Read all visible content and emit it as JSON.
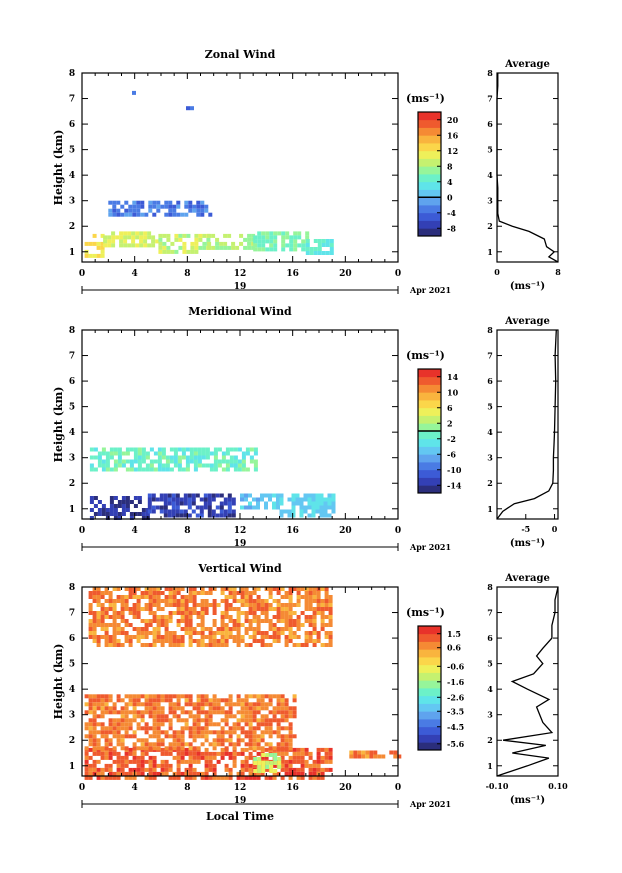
{
  "page": {
    "x_axis_label": "Local Time",
    "date_label": "Apr 2021",
    "day_label": "19"
  },
  "chart_data": [
    {
      "id": "zonal",
      "type": "heatmap",
      "title": "Zonal Wind",
      "ylabel": "Height (km)",
      "xlabel": "",
      "x_ticks": [
        "0",
        "4",
        "8",
        "12",
        "16",
        "20",
        "0"
      ],
      "y_ticks": [
        "1",
        "2",
        "3",
        "4",
        "5",
        "6",
        "7",
        "8"
      ],
      "xlim": [
        0,
        24
      ],
      "ylim": [
        0.6,
        8
      ],
      "colorbar": {
        "unit": "(ms⁻¹)",
        "ticks": [
          "-8",
          "-4",
          "0",
          "4",
          "8",
          "12",
          "16",
          "20"
        ],
        "range": [
          -10,
          22
        ],
        "marker": 0
      },
      "regions": [
        {
          "x": [
            0.2,
            1.6
          ],
          "y": [
            0.8,
            1.7
          ],
          "value": 12
        },
        {
          "x": [
            1.6,
            5.8
          ],
          "y": [
            1.3,
            1.8
          ],
          "value": 10
        },
        {
          "x": [
            5.8,
            9.5
          ],
          "y": [
            1.0,
            1.7
          ],
          "value": 9
        },
        {
          "x": [
            9.5,
            13.0
          ],
          "y": [
            1.2,
            1.7
          ],
          "value": 8
        },
        {
          "x": [
            13.0,
            17.0
          ],
          "y": [
            1.1,
            1.8
          ],
          "value": 6
        },
        {
          "x": [
            17.0,
            19.0
          ],
          "y": [
            0.9,
            1.5
          ],
          "value": 4
        },
        {
          "x": [
            2.0,
            9.8
          ],
          "y": [
            2.4,
            3.0
          ],
          "value": -3
        },
        {
          "x": [
            3.8,
            4.3
          ],
          "y": [
            7.2,
            7.3
          ],
          "value": -4
        },
        {
          "x": [
            7.9,
            8.3
          ],
          "y": [
            6.6,
            6.7
          ],
          "value": -4
        }
      ],
      "average": {
        "title": "Average",
        "x_ticks": [
          "0",
          "8"
        ],
        "xlim": [
          0,
          8
        ],
        "xlabel": "(ms⁻¹)",
        "profile": [
          [
            0.6,
            8.0
          ],
          [
            0.8,
            6.8
          ],
          [
            1.0,
            7.5
          ],
          [
            1.2,
            6.5
          ],
          [
            1.5,
            6.2
          ],
          [
            1.8,
            4.2
          ],
          [
            2.0,
            2.0
          ],
          [
            2.2,
            0.3
          ],
          [
            2.5,
            0.1
          ],
          [
            3.0,
            0.1
          ],
          [
            3.5,
            0.1
          ],
          [
            4.0,
            0.0
          ],
          [
            5.0,
            0.0
          ],
          [
            6.0,
            0.0
          ],
          [
            7.0,
            0.0
          ],
          [
            7.5,
            0.1
          ],
          [
            7.8,
            0.1
          ],
          [
            8.0,
            0.1
          ]
        ]
      }
    },
    {
      "id": "meridional",
      "type": "heatmap",
      "title": "Meridional Wind",
      "ylabel": "Height (km)",
      "xlabel": "",
      "x_ticks": [
        "0",
        "4",
        "8",
        "12",
        "16",
        "20",
        "0"
      ],
      "y_ticks": [
        "1",
        "2",
        "3",
        "4",
        "5",
        "6",
        "7",
        "8"
      ],
      "xlim": [
        0,
        24
      ],
      "ylim": [
        0.6,
        8
      ],
      "colorbar": {
        "unit": "(ms⁻¹)",
        "ticks": [
          "-14",
          "-10",
          "-6",
          "-2",
          "2",
          "6",
          "10",
          "14"
        ],
        "range": [
          -16,
          16
        ],
        "marker": 0
      },
      "regions": [
        {
          "x": [
            0.6,
            13.2
          ],
          "y": [
            2.5,
            3.4
          ],
          "value": -1
        },
        {
          "x": [
            0.6,
            5.0
          ],
          "y": [
            0.7,
            1.5
          ],
          "value": -14
        },
        {
          "x": [
            5.0,
            11.5
          ],
          "y": [
            0.8,
            1.6
          ],
          "value": -13
        },
        {
          "x": [
            12.0,
            15.0
          ],
          "y": [
            1.1,
            1.6
          ],
          "value": -5
        },
        {
          "x": [
            15.0,
            19.0
          ],
          "y": [
            0.8,
            1.6
          ],
          "value": -4
        }
      ],
      "average": {
        "title": "Average",
        "x_ticks": [
          "-5",
          "0"
        ],
        "xlim": [
          -10,
          0.6
        ],
        "xlabel": "(ms⁻¹)",
        "profile": [
          [
            0.6,
            -10.0
          ],
          [
            0.9,
            -9.0
          ],
          [
            1.2,
            -7.0
          ],
          [
            1.4,
            -3.5
          ],
          [
            1.7,
            -1.0
          ],
          [
            2.0,
            -0.3
          ],
          [
            2.5,
            -0.2
          ],
          [
            3.0,
            -0.2
          ],
          [
            3.5,
            -0.1
          ],
          [
            4.0,
            0.0
          ],
          [
            5.0,
            0.1
          ],
          [
            6.0,
            0.2
          ],
          [
            7.0,
            0.1
          ],
          [
            8.0,
            0.3
          ]
        ]
      }
    },
    {
      "id": "vertical",
      "type": "heatmap",
      "title": "Vertical Wind",
      "ylabel": "Height (km)",
      "xlabel": "Local Time",
      "x_ticks": [
        "0",
        "4",
        "8",
        "12",
        "16",
        "20",
        "0"
      ],
      "y_ticks": [
        "1",
        "2",
        "3",
        "4",
        "5",
        "6",
        "7",
        "8"
      ],
      "xlim": [
        0,
        24
      ],
      "ylim": [
        0.6,
        8
      ],
      "colorbar": {
        "unit": "(ms⁻¹)",
        "ticks": [
          "-5.6",
          "-4.5",
          "-3.5",
          "-2.6",
          "-1.6",
          "-0.6",
          "0.6",
          "1.5"
        ],
        "range": [
          -6.0,
          2.0
        ],
        "marker": null
      },
      "regions": [
        {
          "x": [
            0.2,
            19.0
          ],
          "y": [
            0.6,
            1.7
          ],
          "value": 1.2
        },
        {
          "x": [
            0.2,
            16.0
          ],
          "y": [
            1.7,
            3.8
          ],
          "value": 0.9
        },
        {
          "x": [
            0.5,
            19.0
          ],
          "y": [
            5.8,
            8.0
          ],
          "value": 0.8
        },
        {
          "x": [
            20.0,
            24.0
          ],
          "y": [
            1.4,
            1.6
          ],
          "value": 0.9
        },
        {
          "x": [
            13.0,
            15.0
          ],
          "y": [
            0.8,
            1.5
          ],
          "value": -1.2
        }
      ],
      "average": {
        "title": "Average",
        "x_ticks": [
          "-0.10",
          "0.10"
        ],
        "xlim": [
          -0.1,
          0.1
        ],
        "xlabel": "(ms⁻¹)",
        "profile": [
          [
            0.6,
            -0.1
          ],
          [
            1.0,
            0.0
          ],
          [
            1.3,
            0.07
          ],
          [
            1.5,
            -0.05
          ],
          [
            1.8,
            0.06
          ],
          [
            2.0,
            -0.08
          ],
          [
            2.3,
            0.08
          ],
          [
            2.7,
            0.05
          ],
          [
            3.0,
            0.04
          ],
          [
            3.3,
            0.03
          ],
          [
            3.6,
            0.07
          ],
          [
            4.0,
            0.0
          ],
          [
            4.3,
            -0.05
          ],
          [
            4.6,
            0.02
          ],
          [
            5.0,
            0.05
          ],
          [
            5.3,
            0.03
          ],
          [
            5.6,
            0.05
          ],
          [
            6.0,
            0.08
          ],
          [
            6.5,
            0.08
          ],
          [
            7.0,
            0.09
          ],
          [
            7.5,
            0.09
          ],
          [
            8.0,
            0.1
          ]
        ]
      }
    }
  ],
  "colors": {
    "scale": [
      "#2b2e7c",
      "#3340b5",
      "#3c5bd6",
      "#4a7be4",
      "#5fa3ee",
      "#63c7f2",
      "#5fe4e9",
      "#6cf1c8",
      "#96f59a",
      "#c5f170",
      "#eef05a",
      "#fbd64a",
      "#f9b43e",
      "#f58a34",
      "#ef5a2e",
      "#e8322a"
    ],
    "ink": "#000000"
  }
}
